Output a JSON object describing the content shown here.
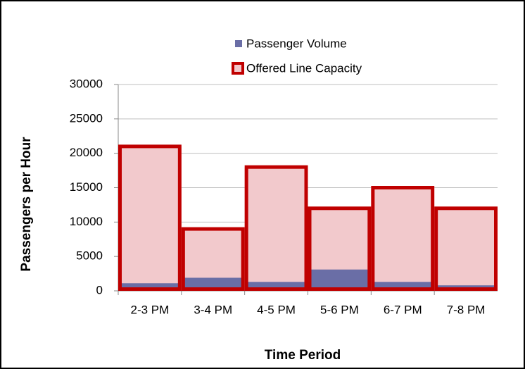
{
  "chart_data": {
    "type": "bar",
    "categories": [
      "2-3 PM",
      "3-4 PM",
      "4-5 PM",
      "5-6 PM",
      "6-7 PM",
      "7-8 PM"
    ],
    "series": [
      {
        "name": "Passenger Volume",
        "color": "#6a6ea6",
        "values": [
          1100,
          1900,
          1300,
          3100,
          1300,
          800
        ]
      },
      {
        "name": "Offered Line Capacity",
        "color": "#c00000",
        "fill": "#f2c9cc",
        "values": [
          21000,
          9000,
          18000,
          12000,
          15000,
          12000
        ]
      }
    ],
    "ylim": [
      0,
      30000
    ],
    "yticks": [
      0,
      5000,
      10000,
      15000,
      20000,
      25000,
      30000
    ],
    "xlabel": "Time Period",
    "ylabel": "Passengers per Hour",
    "grid": true,
    "legend": "top"
  }
}
